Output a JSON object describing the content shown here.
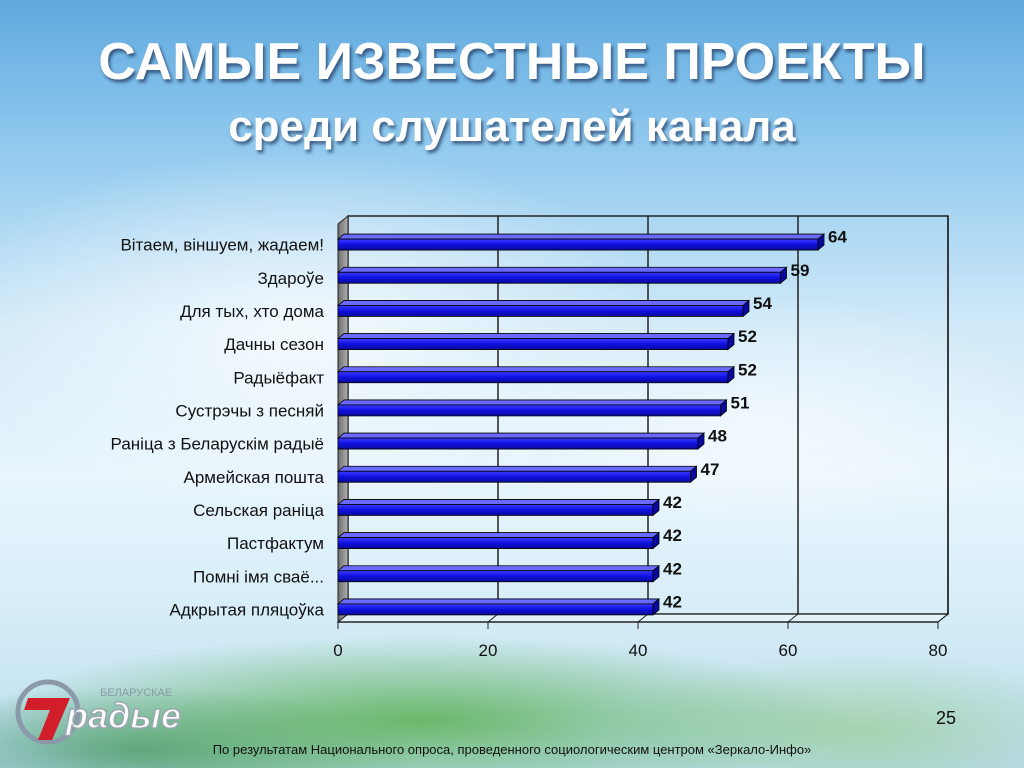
{
  "title": "САМЫЕ ИЗВЕСТНЫЕ ПРОЕКТЫ",
  "subtitle": "среди слушателей канала",
  "chart_data": {
    "type": "bar",
    "orientation": "horizontal",
    "categories": [
      "Вітаем, віншуем, жадаем!",
      "Здароўе",
      "Для тых, хто дома",
      "Дачны сезон",
      "Радыёфакт",
      "Сустрэчы з песняй",
      "Раніца з Беларускім радыё",
      "Армейская пошта",
      "Сельская раніца",
      "Пастфактум",
      "Помні імя сваё...",
      "Адкрытая пляцоўка"
    ],
    "values": [
      64,
      59,
      54,
      52,
      52,
      51,
      48,
      47,
      42,
      42,
      42,
      42
    ],
    "value_labels": [
      "64",
      "59",
      "54",
      "52",
      "52",
      "51",
      "48",
      "47",
      "42",
      "42",
      "42",
      "42"
    ],
    "xlim": [
      0,
      80
    ],
    "x_ticks": [
      "0",
      "20",
      "40",
      "60",
      "80"
    ],
    "bar_color": "#1a1ad8",
    "grid": true
  },
  "logo": {
    "text": "радые",
    "small_text": "БЕЛАРУСКАЕ"
  },
  "page_number": "25",
  "footnote": "По результатам Национального опроса, проведенного социологическим центром «Зеркало-Инфо»"
}
